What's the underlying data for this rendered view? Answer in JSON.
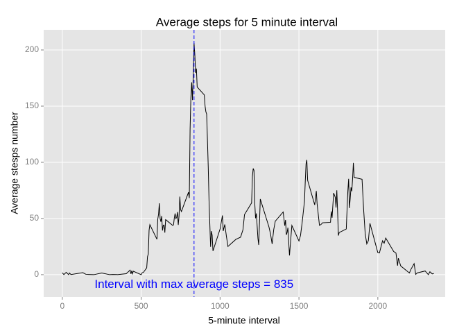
{
  "chart_data": {
    "type": "line",
    "title": "Average steps for 5  minute interval",
    "x_label": "5-minute interval",
    "y_label": "Average stesps number",
    "x": [
      0,
      10,
      25,
      40,
      45,
      55,
      130,
      150,
      200,
      250,
      300,
      320,
      345,
      350,
      405,
      430,
      435,
      440,
      445,
      450,
      500,
      505,
      515,
      535,
      540,
      545,
      550,
      555,
      600,
      605,
      610,
      615,
      620,
      625,
      630,
      635,
      640,
      645,
      650,
      655,
      700,
      705,
      710,
      715,
      720,
      725,
      730,
      735,
      740,
      745,
      750,
      755,
      800,
      805,
      810,
      815,
      820,
      825,
      830,
      835,
      840,
      845,
      850,
      855,
      900,
      905,
      910,
      915,
      920,
      925,
      930,
      935,
      940,
      945,
      950,
      955,
      1000,
      1015,
      1020,
      1030,
      1040,
      1050,
      1100,
      1130,
      1145,
      1155,
      1200,
      1205,
      1210,
      1215,
      1220,
      1225,
      1230,
      1240,
      1245,
      1255,
      1310,
      1320,
      1330,
      1340,
      1350,
      1400,
      1410,
      1415,
      1420,
      1425,
      1430,
      1440,
      1455,
      1500,
      1510,
      1520,
      1535,
      1540,
      1545,
      1550,
      1555,
      1600,
      1610,
      1615,
      1620,
      1630,
      1640,
      1650,
      1700,
      1705,
      1710,
      1720,
      1730,
      1735,
      1740,
      1745,
      1750,
      1755,
      1800,
      1805,
      1810,
      1815,
      1820,
      1825,
      1830,
      1835,
      1840,
      1845,
      1850,
      1900,
      1910,
      1920,
      1930,
      1940,
      1950,
      2000,
      2010,
      2030,
      2040,
      2050,
      2100,
      2115,
      2125,
      2130,
      2145,
      2200,
      2210,
      2230,
      2240,
      2250,
      2300,
      2320,
      2330,
      2345,
      2355
    ],
    "series": [
      {
        "color": "#000000",
        "values": [
          1.7,
          0.1,
          2.1,
          0,
          1.5,
          0.1,
          1.8,
          0.3,
          0,
          1.5,
          0,
          0.2,
          0.1,
          0,
          0.9,
          4.1,
          0.7,
          3.5,
          0.8,
          3.1,
          0,
          1.6,
          2.2,
          6.1,
          16,
          18.3,
          39.5,
          44.5,
          31.5,
          49.3,
          53.8,
          63.5,
          50,
          47.1,
          52.2,
          39.3,
          44,
          44.2,
          37.4,
          49,
          43.8,
          44.4,
          50.5,
          54.5,
          49.9,
          50.9,
          55.7,
          44.3,
          52.3,
          69.5,
          57.8,
          56.2,
          73.4,
          68.2,
          129.4,
          157.5,
          171.2,
          155.4,
          177.3,
          206.2,
          195.9,
          179.6,
          183.4,
          167,
          160,
          150,
          145,
          143,
          120,
          96,
          66.2,
          45.2,
          24.8,
          38.8,
          35,
          21.1,
          40.6,
          52.7,
          38.9,
          44.7,
          34.4,
          25.1,
          31.4,
          33.4,
          39.9,
          53.5,
          63.9,
          87.6,
          94.5,
          92.8,
          63.4,
          50.2,
          54.5,
          32.4,
          26.5,
          67.3,
          42.4,
          36.1,
          27.3,
          40,
          47.6,
          55.8,
          43.6,
          48.7,
          35.5,
          37.5,
          41.8,
          17.1,
          43.8,
          30,
          35,
          46,
          65.3,
          82.9,
          98.7,
          102.1,
          84,
          62.1,
          74.5,
          63.2,
          56.9,
          43.9,
          44.7,
          46.2,
          46.6,
          56.3,
          50.7,
          72.7,
          68.9,
          59.7,
          75.1,
          56.5,
          34.8,
          37.5,
          40.7,
          58,
          74.7,
          85.3,
          59.3,
          67.8,
          77.7,
          74.2,
          85.3,
          99.5,
          86.6,
          84.9,
          58,
          36.3,
          27.4,
          30.2,
          45.7,
          19.6,
          19.3,
          30.2,
          28,
          32.6,
          20.7,
          19.2,
          8,
          14.7,
          7.8,
          1.5,
          4.8,
          9.8,
          0.3,
          1.6,
          3.3,
          0,
          2.6,
          0.7,
          1.1
        ]
      }
    ],
    "xlim": [
      -118,
      2427
    ],
    "ylim": [
      -19.8,
      217.9
    ],
    "xticks": [
      0,
      500,
      1000,
      1500,
      2000
    ],
    "yticks": [
      0,
      50,
      100,
      150,
      200
    ],
    "grid": true,
    "vline": {
      "x": 835,
      "color": "#0000ff",
      "dashed": true
    },
    "annotation": {
      "text": "Interval with max average steps = 835",
      "x": 835,
      "y": -9,
      "color": "#0000ff"
    }
  }
}
